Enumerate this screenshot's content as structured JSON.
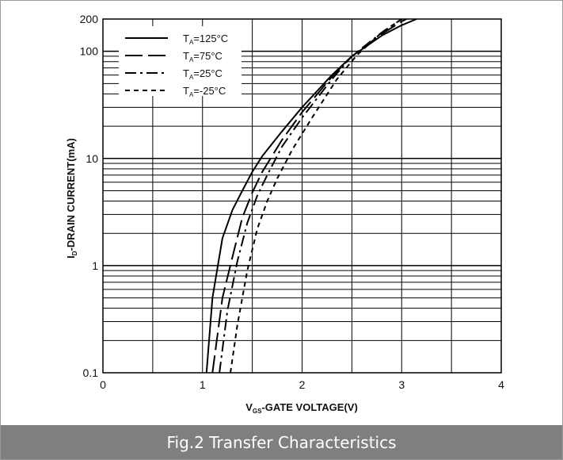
{
  "caption": "Fig.2 Transfer Characteristics",
  "chart_data": {
    "type": "line",
    "title": "",
    "xlabel": "V_GS-GATE VOLTAGE(V)",
    "xlabel_main": "V",
    "xlabel_sub": "GS",
    "xlabel_rest": "-GATE VOLTAGE(V)",
    "ylabel": "I_D-DRAIN CURRENT(mA)",
    "ylabel_main": "I",
    "ylabel_sub": "D",
    "ylabel_rest": "-DRAIN CURRENT(mA)",
    "xlim": [
      0,
      4
    ],
    "ylim": [
      0.1,
      200
    ],
    "yscale": "log",
    "grid": true,
    "legend_position": "top-left",
    "x_ticks": [
      "0",
      "1",
      "2",
      "3",
      "4"
    ],
    "y_ticks": [
      {
        "value": 0.1,
        "label": "0.1"
      },
      {
        "value": 1,
        "label": "1"
      },
      {
        "value": 10,
        "label": "10"
      },
      {
        "value": 100,
        "label": "100"
      },
      {
        "value": 200,
        "label": "200"
      }
    ],
    "series": [
      {
        "name": "TA=125°C",
        "label_main": "T",
        "label_sub": "A",
        "label_rest": "=125°C",
        "dash": "",
        "x": [
          1.04,
          1.1,
          1.2,
          1.3,
          1.4,
          1.5,
          1.6,
          1.8,
          2.0,
          2.3,
          2.5,
          2.8,
          3.0,
          3.15
        ],
        "y": [
          0.1,
          0.5,
          1.8,
          3.3,
          5.0,
          7.5,
          10.5,
          18,
          30,
          60,
          90,
          140,
          175,
          200
        ]
      },
      {
        "name": "TA=75°C",
        "label_main": "T",
        "label_sub": "A",
        "label_rest": "=75°C",
        "dash": "22 7",
        "x": [
          1.1,
          1.2,
          1.3,
          1.4,
          1.5,
          1.6,
          1.8,
          2.0,
          2.3,
          2.5,
          2.8,
          3.0,
          3.05
        ],
        "y": [
          0.1,
          0.5,
          1.2,
          2.8,
          4.8,
          7.5,
          15,
          27,
          58,
          90,
          145,
          190,
          200
        ]
      },
      {
        "name": "TA=25°C",
        "label_main": "T",
        "label_sub": "A",
        "label_rest": "=25°C",
        "dash": "14 5 3 5",
        "x": [
          1.17,
          1.25,
          1.35,
          1.45,
          1.55,
          1.65,
          1.8,
          2.0,
          2.3,
          2.5,
          2.8,
          3.0
        ],
        "y": [
          0.1,
          0.38,
          1.1,
          2.5,
          4.5,
          7.0,
          13,
          24,
          55,
          90,
          150,
          200
        ]
      },
      {
        "name": "TA=-25°C",
        "label_main": "T",
        "label_sub": "A",
        "label_rest": "=-25°C",
        "dash": "6 5",
        "x": [
          1.28,
          1.35,
          1.45,
          1.55,
          1.65,
          1.75,
          1.9,
          2.1,
          2.35,
          2.55,
          2.8,
          3.0
        ],
        "y": [
          0.1,
          0.28,
          0.9,
          2.2,
          4.0,
          6.5,
          12,
          24,
          55,
          92,
          150,
          200
        ]
      }
    ]
  }
}
